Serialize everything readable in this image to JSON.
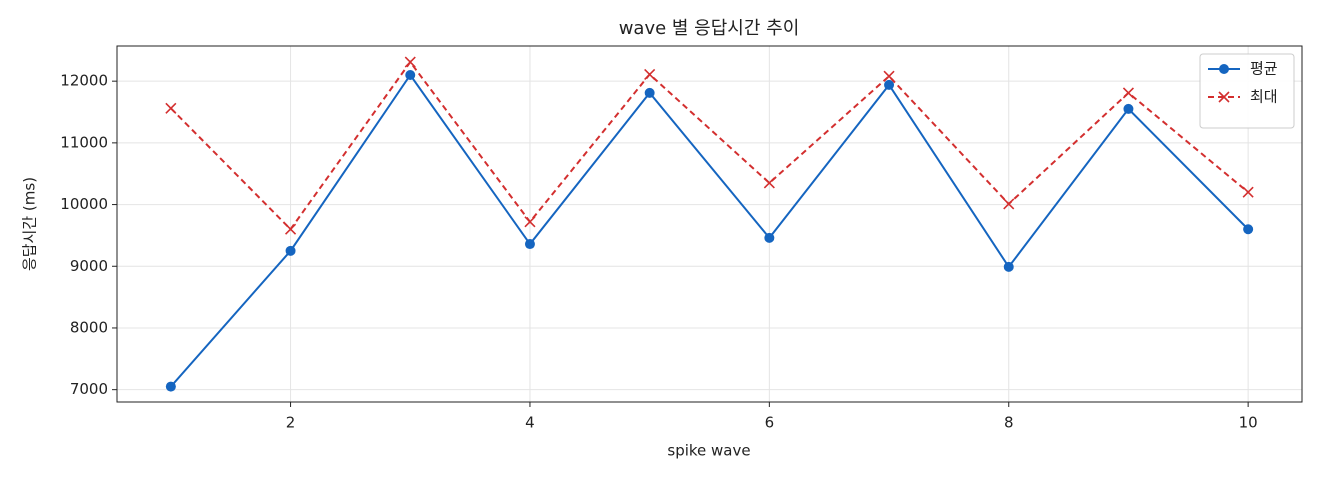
{
  "chart_data": {
    "type": "line",
    "title": "wave 별 응답시간 추이",
    "x_label": "spike wave",
    "y_label": "응답시간 (ms)",
    "x": [
      1,
      2,
      3,
      4,
      5,
      6,
      7,
      8,
      9,
      10
    ],
    "series": [
      {
        "name": "평균",
        "color": "#1565c0",
        "marker": "o",
        "linestyle": "solid",
        "values": [
          7050,
          9250,
          12100,
          9360,
          11810,
          9460,
          11940,
          8990,
          11550,
          9600
        ]
      },
      {
        "name": "최대",
        "color": "#d32f2f",
        "marker": "x",
        "linestyle": "dashed",
        "values": [
          11560,
          9600,
          12310,
          9720,
          12110,
          10350,
          12080,
          10010,
          11810,
          10200
        ]
      }
    ],
    "xlim": [
      0.55,
      10.45
    ],
    "ylim": [
      6800,
      12570
    ],
    "xticks": [
      2,
      4,
      6,
      8,
      10
    ],
    "yticks": [
      7000,
      8000,
      9000,
      10000,
      11000,
      12000
    ],
    "grid": true,
    "legend": "upper right"
  }
}
